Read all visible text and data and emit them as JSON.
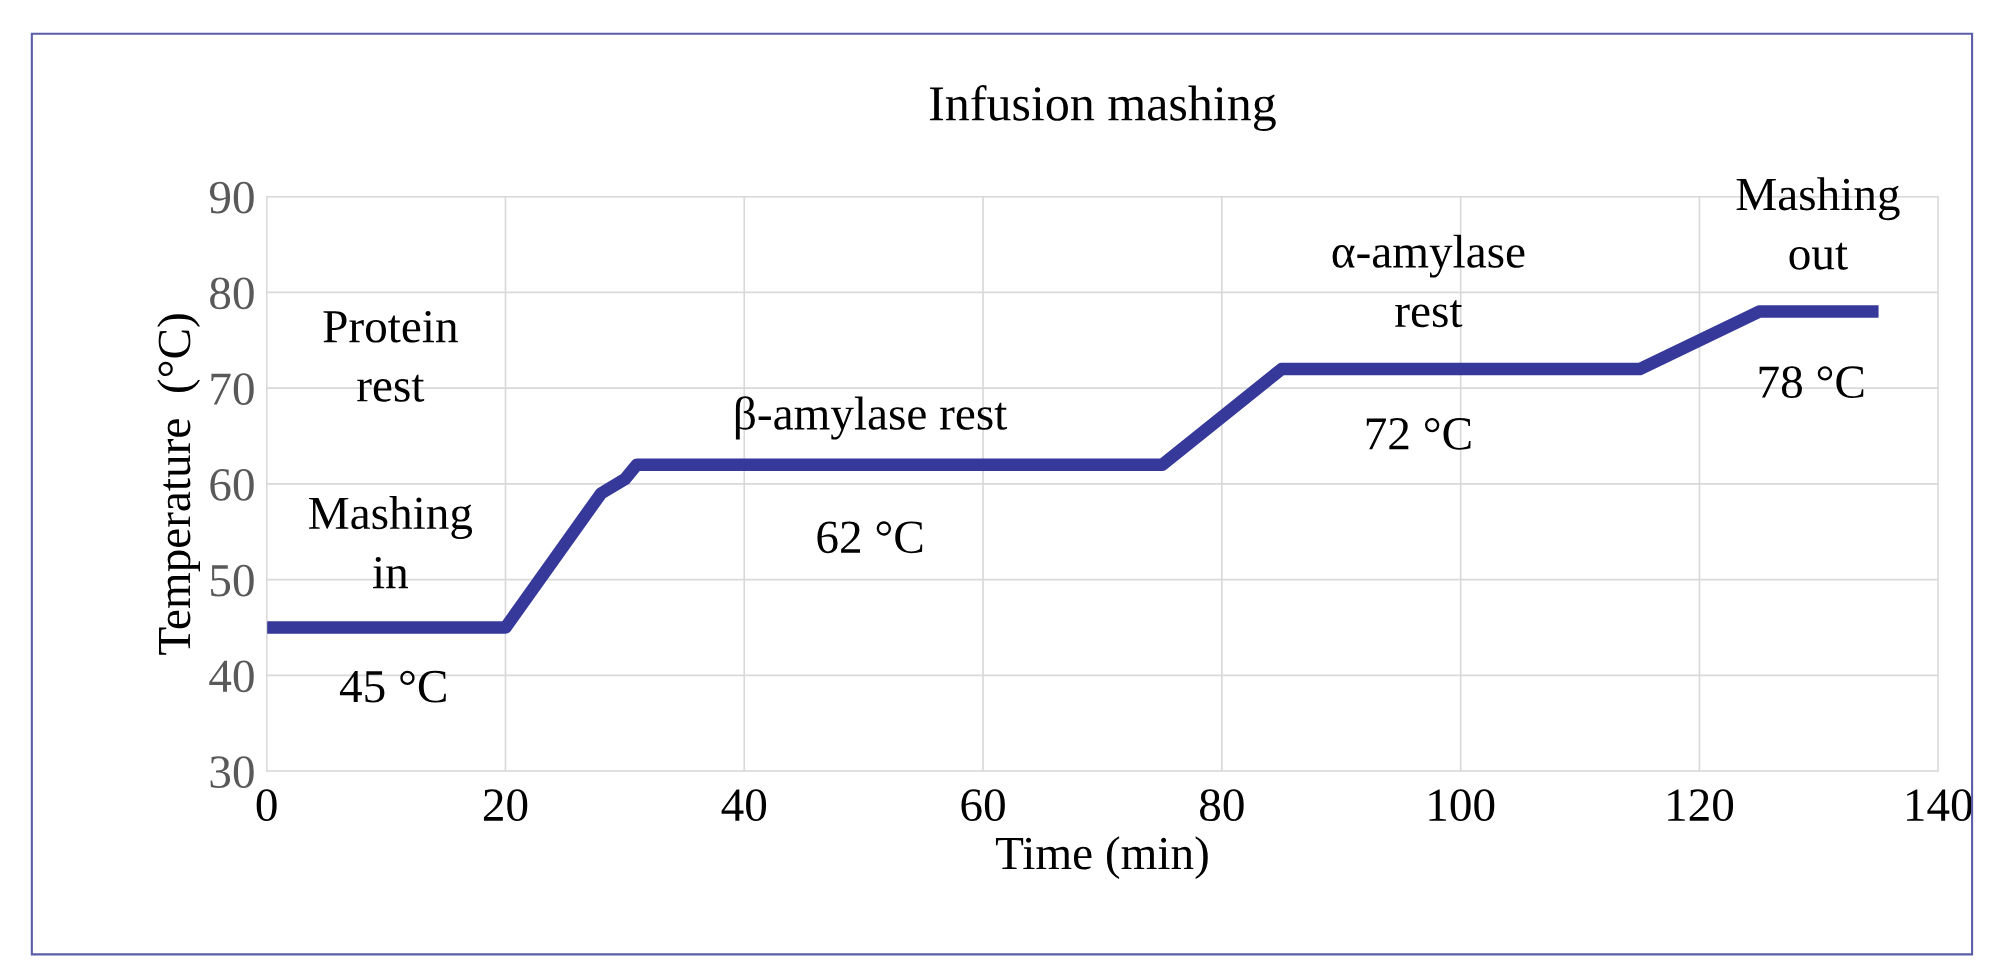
{
  "chart_data": {
    "type": "line",
    "title": "Infusion mashing",
    "xlabel": "Time (min)",
    "ylabel": "Temperature  (°C)",
    "x": [
      0,
      20,
      28,
      30,
      31,
      75,
      85,
      115,
      125,
      135
    ],
    "series": [
      {
        "color": "#36399a",
        "values": [
          45,
          45,
          59,
          60.5,
          62,
          62,
          72,
          72,
          78,
          78
        ]
      }
    ],
    "xlim": [
      0,
      140
    ],
    "xticks": [
      0,
      20,
      40,
      60,
      80,
      100,
      120,
      140
    ],
    "ylim": [
      30,
      90
    ],
    "yticks": [
      30,
      40,
      50,
      60,
      70,
      80,
      90
    ],
    "grid": true,
    "marker": "none",
    "line_style": "solid",
    "annotations": [
      "Protein\nrest",
      "Mashing\nin",
      "45 °C",
      "β-amylase rest",
      "62 °C",
      "α-amylase\nrest",
      "72 °C",
      "Mashing\nout",
      "78 °C"
    ]
  }
}
